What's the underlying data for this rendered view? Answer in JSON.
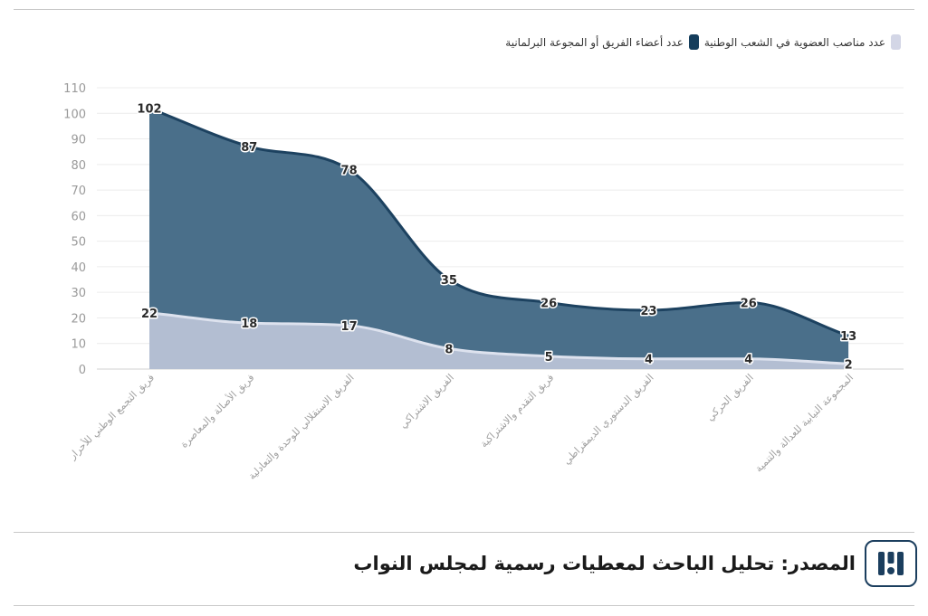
{
  "legend": {
    "items": [
      {
        "label": "عدد مناصب العضوية في الشعب الوطنية",
        "color": "#d3d6e6"
      },
      {
        "label": "عدد أعضاء الفريق أو المجوعة البرلمانية",
        "color": "#143d5c"
      }
    ]
  },
  "footer": {
    "source": "المصدر: تحليل الباحث لمعطيات رسمية لمجلس النواب"
  },
  "chart_data": {
    "type": "area",
    "categories": [
      "فريق التجمع الوطني للأحرار",
      "فريق الأصالة والمعاصرة",
      "الفريق الاستقلالي للوحدة والتعادلية",
      "الفريق الاشتراكي",
      "فريق التقدم والاشتراكية",
      "الفريق الدستوري الديمقراطي",
      "الفريق الحركي",
      "المجموعة النيابية للعدالة والتنمية"
    ],
    "series": [
      {
        "name": "عدد أعضاء الفريق أو المجوعة البرلمانية",
        "values": [
          102,
          87,
          78,
          35,
          26,
          23,
          26,
          13
        ],
        "color": "#4a6f8a",
        "line_color": "#1d4260"
      },
      {
        "name": "عدد مناصب العضوية في الشعب الوطنية",
        "values": [
          22,
          18,
          17,
          8,
          5,
          4,
          4,
          2
        ],
        "color": "#b3bed2",
        "line_color": "#dde2ee"
      }
    ],
    "yticks": [
      0,
      10,
      20,
      30,
      40,
      50,
      60,
      70,
      80,
      90,
      100,
      110
    ],
    "ylim": [
      0,
      110
    ],
    "grid": true,
    "legend_position": "top-right"
  }
}
